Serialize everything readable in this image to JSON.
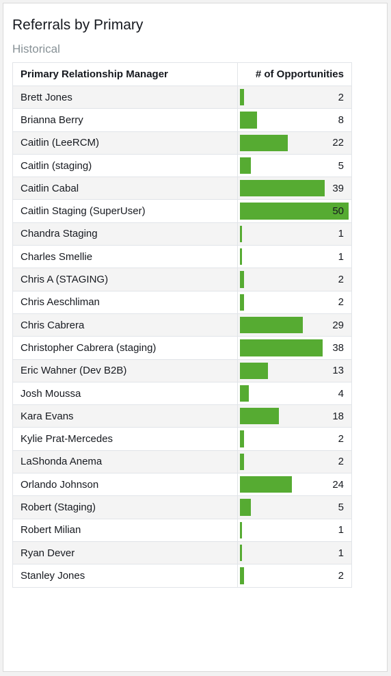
{
  "widget": {
    "title": "Referrals by Primary",
    "subtitle": "Historical"
  },
  "table": {
    "headers": [
      "Primary Relationship Manager",
      "# of Opportunities"
    ],
    "bar_color": "#56ab32",
    "max_value": 50,
    "rows": [
      {
        "name": "Brett Jones",
        "value": 2
      },
      {
        "name": "Brianna Berry",
        "value": 8
      },
      {
        "name": "Caitlin (LeeRCM)",
        "value": 22
      },
      {
        "name": "Caitlin (staging)",
        "value": 5
      },
      {
        "name": "Caitlin Cabal",
        "value": 39
      },
      {
        "name": "Caitlin Staging (SuperUser)",
        "value": 50
      },
      {
        "name": "Chandra Staging",
        "value": 1
      },
      {
        "name": "Charles Smellie",
        "value": 1
      },
      {
        "name": "Chris A (STAGING)",
        "value": 2
      },
      {
        "name": "Chris Aeschliman",
        "value": 2
      },
      {
        "name": "Chris Cabrera",
        "value": 29
      },
      {
        "name": "Christopher Cabrera (staging)",
        "value": 38
      },
      {
        "name": "Eric Wahner (Dev B2B)",
        "value": 13
      },
      {
        "name": "Josh Moussa",
        "value": 4
      },
      {
        "name": "Kara Evans",
        "value": 18
      },
      {
        "name": "Kylie Prat-Mercedes",
        "value": 2
      },
      {
        "name": "LaShonda Anema",
        "value": 2
      },
      {
        "name": "Orlando Johnson",
        "value": 24
      },
      {
        "name": "Robert (Staging)",
        "value": 5
      },
      {
        "name": "Robert Milian",
        "value": 1
      },
      {
        "name": "Ryan Dever",
        "value": 1
      },
      {
        "name": "Stanley Jones",
        "value": 2
      }
    ]
  }
}
